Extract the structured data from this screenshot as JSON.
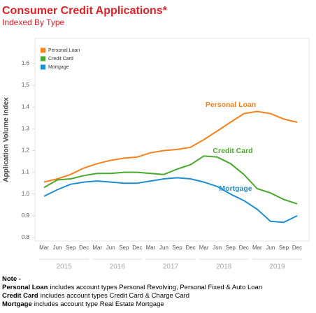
{
  "chart_data": {
    "type": "line",
    "title": "Consumer Credit Applications*",
    "subtitle": "Indexed By Type",
    "y_label": "Application Volume Index",
    "categories": [
      "Mar",
      "Jun",
      "Sep",
      "Dec",
      "Mar",
      "Jun",
      "Sep",
      "Dec",
      "Mar",
      "Jun",
      "Sep",
      "Dec",
      "Mar",
      "Jun",
      "Sep",
      "Dec",
      "Mar",
      "Jun",
      "Sep",
      "Dec"
    ],
    "year_groups": [
      "2015",
      "2016",
      "2017",
      "2018",
      "2019"
    ],
    "ylim": [
      0.8,
      1.6
    ],
    "yticks": [
      {
        "value": 0.8,
        "label": "0.8"
      },
      {
        "value": 0.9,
        "label": "0.9"
      },
      {
        "value": 1.0,
        "label": "1.0"
      },
      1.1,
      1.2,
      1.3,
      1.4,
      1.5,
      1.6
    ],
    "legend": "top-left",
    "series": [
      {
        "name": "Personal Loan",
        "color": "#f5821f",
        "values": [
          1.055,
          1.07,
          1.09,
          1.12,
          1.14,
          1.155,
          1.165,
          1.17,
          1.19,
          1.2,
          1.205,
          1.215,
          1.25,
          1.29,
          1.33,
          1.37,
          1.38,
          1.37,
          1.345,
          1.33
        ]
      },
      {
        "name": "Credit Card",
        "color": "#4aa72f",
        "values": [
          1.03,
          1.065,
          1.07,
          1.085,
          1.095,
          1.095,
          1.1,
          1.1,
          1.095,
          1.09,
          1.115,
          1.135,
          1.175,
          1.17,
          1.14,
          1.09,
          1.025,
          1.005,
          0.975,
          0.955
        ]
      },
      {
        "name": "Mortgage",
        "color": "#1f8ed0",
        "values": [
          0.99,
          1.02,
          1.045,
          1.055,
          1.06,
          1.055,
          1.05,
          1.05,
          1.06,
          1.07,
          1.075,
          1.07,
          1.055,
          1.035,
          1.0,
          0.97,
          0.93,
          0.875,
          0.87,
          0.9
        ]
      }
    ]
  },
  "notes": {
    "heading": "Note -",
    "items": [
      {
        "term": "Personal Loan",
        "text": "includes account types Personal Revolving, Personal Fixed & Auto Loan"
      },
      {
        "term": "Credit Card",
        "text": "includes account types Credit Card & Charge Card"
      },
      {
        "term": "Mortgage",
        "text": "includes account type Real Estate Mortgage"
      }
    ]
  }
}
